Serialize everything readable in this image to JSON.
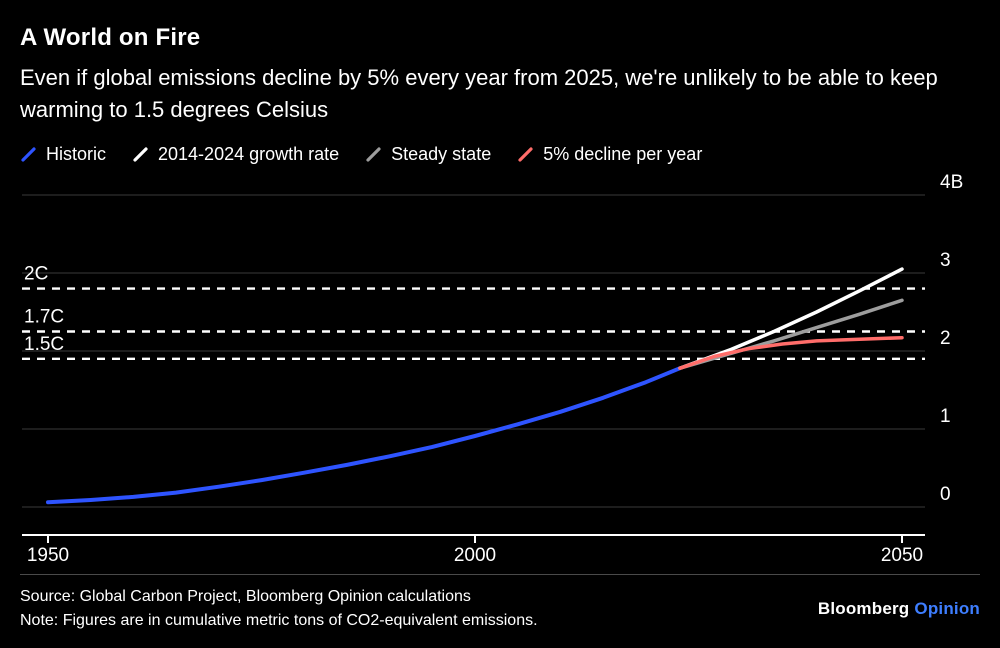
{
  "header": {
    "title": "A World on Fire",
    "subtitle": "Even if global emissions decline by 5% every year from 2025, we're unlikely to be able to keep warming to 1.5 degrees Celsius"
  },
  "legend": [
    {
      "label": "Historic",
      "color": "#2e54ff"
    },
    {
      "label": "2014-2024 growth rate",
      "color": "#ffffff"
    },
    {
      "label": "Steady state",
      "color": "#9d9d9d"
    },
    {
      "label": "5% decline per year",
      "color": "#ff6d6a"
    }
  ],
  "chart_data": {
    "type": "line",
    "title": "A World on Fire",
    "ylabel": "",
    "xlabel": "",
    "xlim": [
      1947,
      2053
    ],
    "ylim": [
      0,
      4
    ],
    "grid": true,
    "legend_position": "top",
    "yticks": [
      {
        "value": 0,
        "label": "0"
      },
      {
        "value": 1,
        "label": "1"
      },
      {
        "value": 2,
        "label": "2"
      },
      {
        "value": 3,
        "label": "3"
      },
      {
        "value": 4,
        "label": "4B"
      }
    ],
    "xticks": [
      {
        "value": 1950,
        "label": "1950"
      },
      {
        "value": 2000,
        "label": "2000"
      },
      {
        "value": 2050,
        "label": "2050"
      }
    ],
    "thresholds": [
      {
        "label": "2C",
        "value": 2.8
      },
      {
        "label": "1.7C",
        "value": 2.25
      },
      {
        "label": "1.5C",
        "value": 1.9
      }
    ],
    "series": [
      {
        "name": "Historic",
        "color": "#2e54ff",
        "width": 4,
        "x": [
          1950,
          1955,
          1960,
          1965,
          1970,
          1975,
          1980,
          1985,
          1990,
          1995,
          2000,
          2005,
          2010,
          2015,
          2020,
          2024
        ],
        "values": [
          0.06,
          0.09,
          0.13,
          0.185,
          0.26,
          0.345,
          0.44,
          0.54,
          0.65,
          0.77,
          0.91,
          1.06,
          1.22,
          1.4,
          1.6,
          1.78
        ]
      },
      {
        "name": "2014-2024 growth rate",
        "color": "#ffffff",
        "width": 3.5,
        "x": [
          2024,
          2030,
          2035,
          2040,
          2045,
          2050
        ],
        "values": [
          1.78,
          2.02,
          2.25,
          2.5,
          2.77,
          3.05
        ]
      },
      {
        "name": "Steady state",
        "color": "#9d9d9d",
        "width": 3.5,
        "x": [
          2024,
          2030,
          2035,
          2040,
          2045,
          2050
        ],
        "values": [
          1.78,
          1.97,
          2.13,
          2.3,
          2.47,
          2.65
        ]
      },
      {
        "name": "5% decline per year",
        "color": "#ff6d6a",
        "width": 3.5,
        "x": [
          2024,
          2028,
          2032,
          2036,
          2040,
          2045,
          2050
        ],
        "values": [
          1.78,
          1.93,
          2.03,
          2.09,
          2.13,
          2.15,
          2.17
        ]
      }
    ]
  },
  "footer": {
    "source": "Source: Global Carbon Project, Bloomberg Opinion calculations",
    "note": "Note: Figures are in cumulative metric tons of CO2-equivalent emissions.",
    "brand": {
      "bloomberg": "Bloomberg",
      "opinion": "Opinion"
    }
  },
  "colors": {
    "background": "#000000",
    "gridline": "#3a3a3a",
    "axis": "#ffffff",
    "threshold": "#ffffff",
    "brand_opinion": "#3e7eff",
    "text": "#ffffff"
  }
}
